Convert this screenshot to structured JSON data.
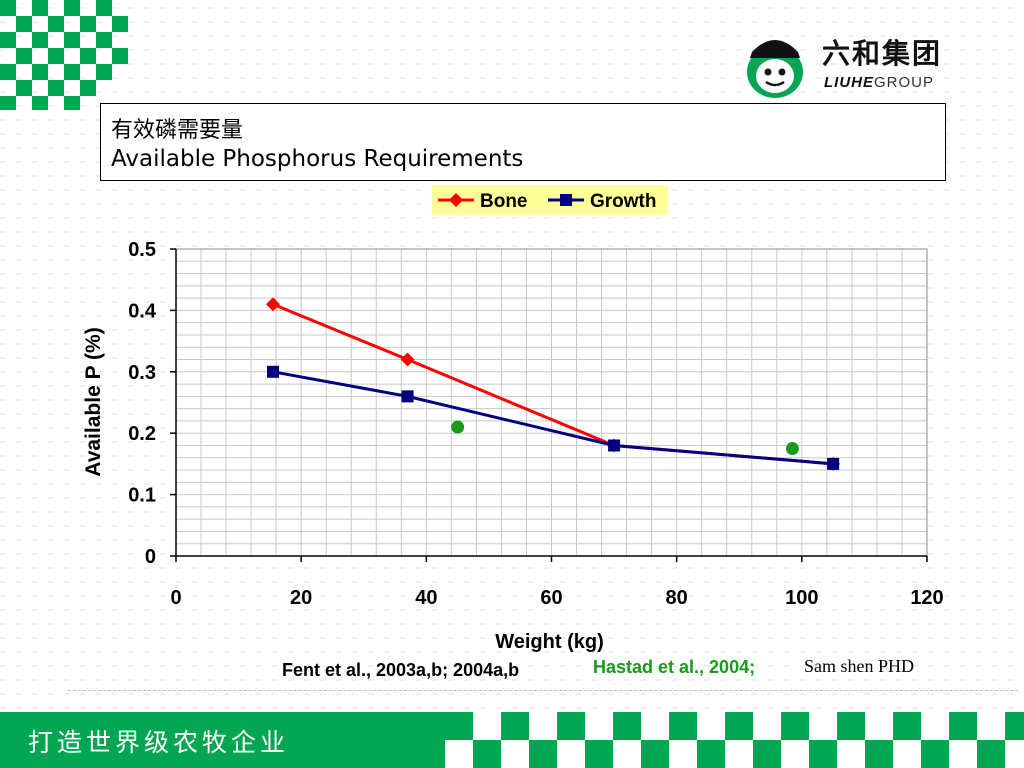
{
  "logo": {
    "cn": "六和集团",
    "en_bold": "LIUHE",
    "en_rest": "GROUP"
  },
  "title": {
    "cn": "有效磷需要量",
    "en": "Available Phosphorus Requirements"
  },
  "footer": {
    "slogan": "打造世界级农牧企业"
  },
  "references": {
    "fent": "Fent et al., 2003a,b; 2004a,b",
    "hastad": "Hastad et al., 2004;",
    "sam": "Sam shen PHD"
  },
  "colors": {
    "brand_green": "#00a651",
    "bone": "#ff0000",
    "growth": "#000080",
    "hastad": "#1a9a1a",
    "legend_bg": "#ffff99"
  },
  "chart_data": {
    "type": "line",
    "xlabel": "Weight (kg)",
    "ylabel": "Available P (%)",
    "xlim": [
      0,
      120
    ],
    "ylim": [
      0,
      0.5
    ],
    "xticks": [
      0,
      20,
      40,
      60,
      80,
      100,
      120
    ],
    "yticks": [
      0,
      0.1,
      0.2,
      0.3,
      0.4,
      0.5
    ],
    "ytick_labels": [
      "0",
      "0.1",
      "0.2",
      "0.3",
      "0.4",
      "0.5"
    ],
    "grid": true,
    "legend_position": "top-center",
    "series": [
      {
        "name": "Bone",
        "color": "#ff0000",
        "marker": "diamond",
        "points": [
          [
            15.5,
            0.41
          ],
          [
            37,
            0.32
          ],
          [
            70,
            0.18
          ],
          [
            105,
            0.15
          ]
        ]
      },
      {
        "name": "Growth",
        "color": "#000080",
        "marker": "square",
        "points": [
          [
            15.5,
            0.3
          ],
          [
            37,
            0.26
          ],
          [
            70,
            0.18
          ],
          [
            105,
            0.15
          ]
        ]
      },
      {
        "color": "#1a9a1a",
        "marker": "circle",
        "line": false,
        "points": [
          [
            45,
            0.21
          ],
          [
            98.5,
            0.175
          ]
        ]
      }
    ]
  }
}
